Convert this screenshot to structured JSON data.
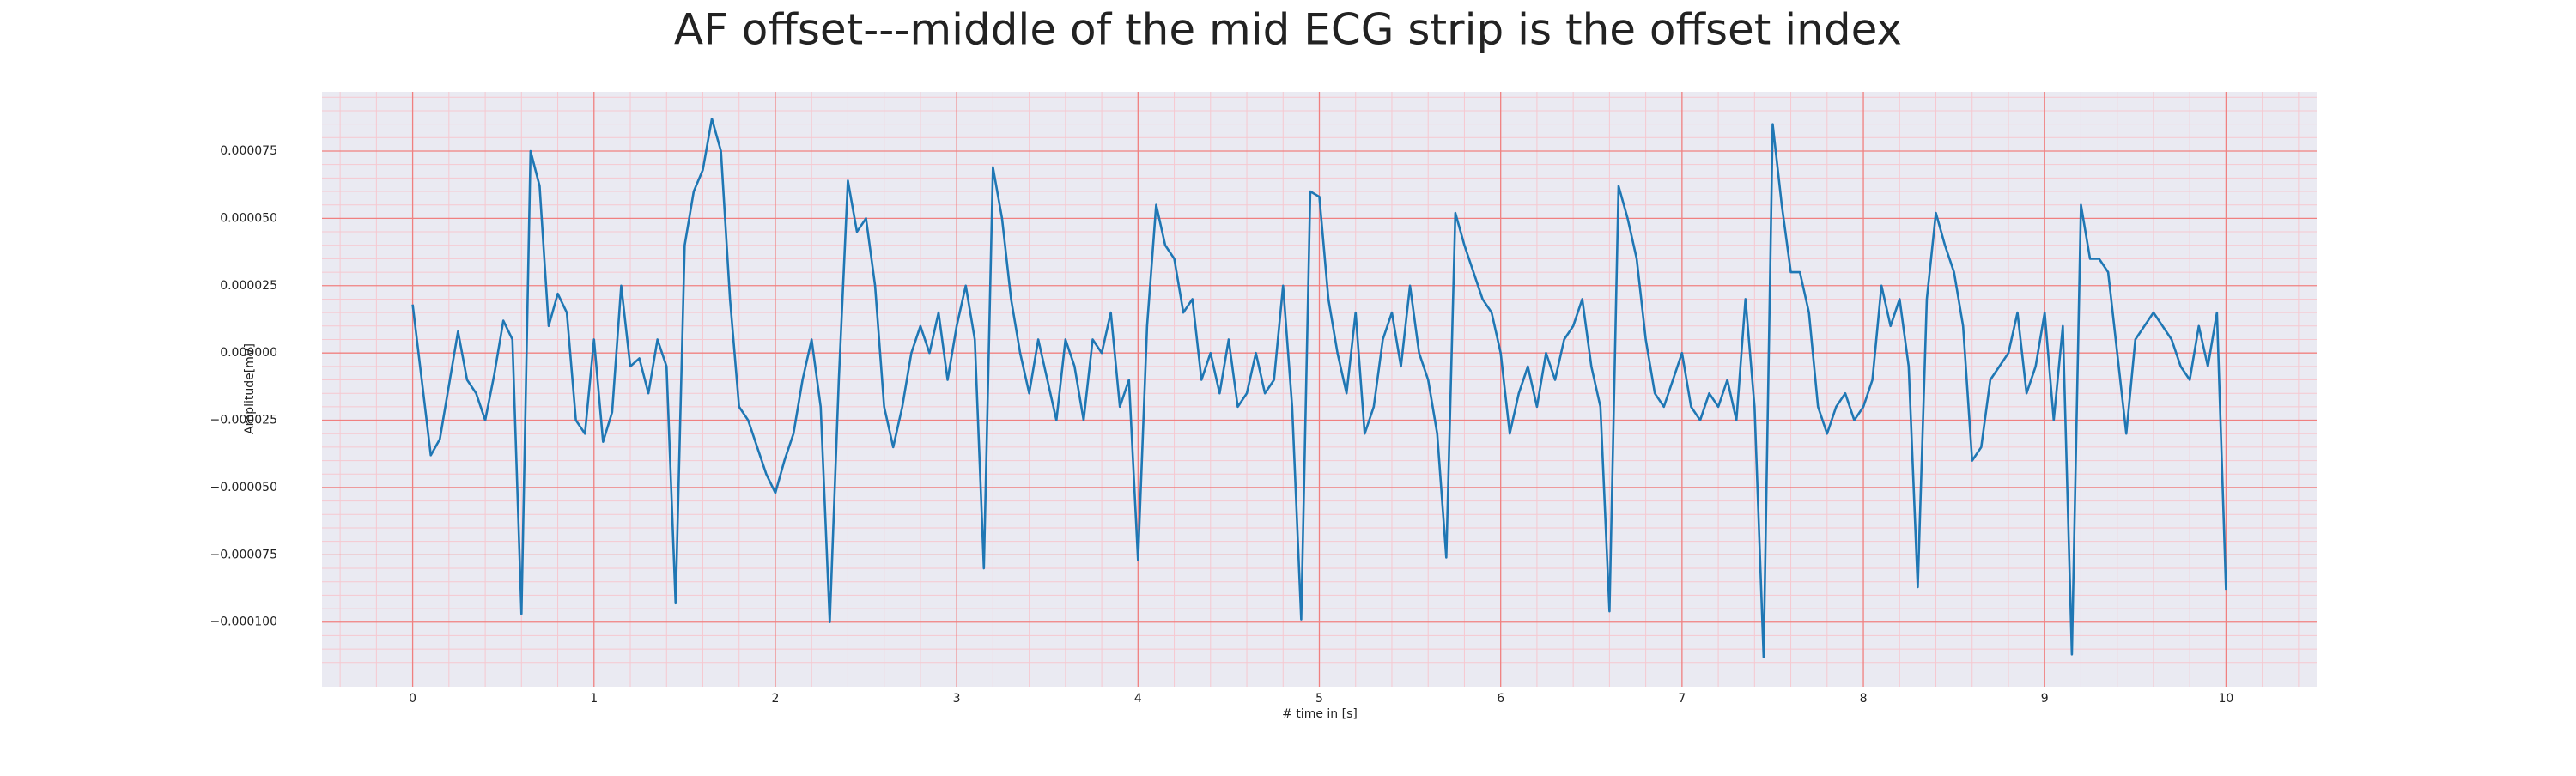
{
  "chart_data": {
    "type": "line",
    "title": "AF offset---middle of the mid ECG strip is the offset index",
    "xlabel": "# time in [s]",
    "ylabel": "Amplitude[mV]",
    "color": "#1f77b4",
    "background": "#eaeaf2",
    "grid": true,
    "grid_color": "#f08080",
    "minor_grid_color": "#f6c8d0",
    "xlim": [
      -0.5,
      10.5
    ],
    "ylim": [
      -0.000124,
      9.7e-05
    ],
    "xticks": [
      0,
      1,
      2,
      3,
      4,
      5,
      6,
      7,
      8,
      9,
      10
    ],
    "yticks": [
      {
        "value": -0.0001,
        "label": "−0.000100"
      },
      {
        "value": -7.5e-05,
        "label": "−0.000075"
      },
      {
        "value": -5e-05,
        "label": "−0.000050"
      },
      {
        "value": -2.5e-05,
        "label": "−0.000025"
      },
      {
        "value": 0,
        "label": "0.000000"
      },
      {
        "value": 2.5e-05,
        "label": "0.000025"
      },
      {
        "value": 5e-05,
        "label": "0.000050"
      },
      {
        "value": 7.5e-05,
        "label": "0.000075"
      }
    ],
    "xminorticks": [
      -0.4,
      -0.2,
      0.2,
      0.4,
      0.6,
      0.8,
      1.2,
      1.4,
      1.6,
      1.8,
      2.2,
      2.4,
      2.6,
      2.8,
      3.2,
      3.4,
      3.6,
      3.8,
      4.2,
      4.4,
      4.6,
      4.8,
      5.2,
      5.4,
      5.6,
      5.8,
      6.2,
      6.4,
      6.6,
      6.8,
      7.2,
      7.4,
      7.6,
      7.8,
      8.2,
      8.4,
      8.6,
      8.8,
      9.2,
      9.4,
      9.6,
      9.8,
      10.2,
      10.4
    ],
    "yminorticks": [
      -0.00012,
      -0.000115,
      -0.00011,
      -0.000105,
      -9.5e-05,
      -9e-05,
      -8.5e-05,
      -8e-05,
      -7e-05,
      -6.5e-05,
      -6e-05,
      -5.5e-05,
      -4.5e-05,
      -4e-05,
      -3.5e-05,
      -3e-05,
      -2e-05,
      -1.5e-05,
      -1e-05,
      -5e-06,
      5e-06,
      1e-05,
      1.5e-05,
      2e-05,
      3e-05,
      3.5e-05,
      4e-05,
      4.5e-05,
      5.5e-05,
      6e-05,
      6.5e-05,
      7e-05,
      8e-05,
      8.5e-05,
      9e-05,
      9.5e-05
    ],
    "x": [
      0,
      0.05,
      0.1,
      0.15,
      0.2,
      0.25,
      0.3,
      0.35,
      0.4,
      0.45,
      0.5,
      0.55,
      0.6,
      0.65,
      0.7,
      0.75,
      0.8,
      0.85,
      0.9,
      0.95,
      1,
      1.05,
      1.1,
      1.15,
      1.2,
      1.25,
      1.3,
      1.35,
      1.4,
      1.45,
      1.5,
      1.55,
      1.6,
      1.65,
      1.7,
      1.75,
      1.8,
      1.85,
      1.9,
      1.95,
      2,
      2.05,
      2.1,
      2.15,
      2.2,
      2.25,
      2.3,
      2.35,
      2.4,
      2.45,
      2.5,
      2.55,
      2.6,
      2.65,
      2.7,
      2.75,
      2.8,
      2.85,
      2.9,
      2.95,
      3,
      3.05,
      3.1,
      3.15,
      3.2,
      3.25,
      3.3,
      3.35,
      3.4,
      3.45,
      3.5,
      3.55,
      3.6,
      3.65,
      3.7,
      3.75,
      3.8,
      3.85,
      3.9,
      3.95,
      4,
      4.05,
      4.1,
      4.15,
      4.2,
      4.25,
      4.3,
      4.35,
      4.4,
      4.45,
      4.5,
      4.55,
      4.6,
      4.65,
      4.7,
      4.75,
      4.8,
      4.85,
      4.9,
      4.95,
      5,
      5.05,
      5.1,
      5.15,
      5.2,
      5.25,
      5.3,
      5.35,
      5.4,
      5.45,
      5.5,
      5.55,
      5.6,
      5.65,
      5.7,
      5.75,
      5.8,
      5.85,
      5.9,
      5.95,
      6,
      6.05,
      6.1,
      6.15,
      6.2,
      6.25,
      6.3,
      6.35,
      6.4,
      6.45,
      6.5,
      6.55,
      6.6,
      6.65,
      6.7,
      6.75,
      6.8,
      6.85,
      6.9,
      6.95,
      7,
      7.05,
      7.1,
      7.15,
      7.2,
      7.25,
      7.3,
      7.35,
      7.4,
      7.45,
      7.5,
      7.55,
      7.6,
      7.65,
      7.7,
      7.75,
      7.8,
      7.85,
      7.9,
      7.95,
      8,
      8.05,
      8.1,
      8.15,
      8.2,
      8.25,
      8.3,
      8.35,
      8.4,
      8.45,
      8.5,
      8.55,
      8.6,
      8.65,
      8.7,
      8.75,
      8.8,
      8.85,
      8.9,
      8.95,
      9,
      9.05,
      9.1,
      9.15,
      9.2,
      9.25,
      9.3,
      9.35,
      9.4,
      9.45,
      9.5,
      9.55,
      9.6,
      9.65,
      9.7,
      9.75,
      9.8,
      9.85,
      9.9,
      9.95,
      10
    ],
    "values": [
      1.8e-05,
      -1e-05,
      -3.8e-05,
      -3.2e-05,
      -1.2e-05,
      8e-06,
      -1e-05,
      -1.5e-05,
      -2.5e-05,
      -8e-06,
      1.2e-05,
      5e-06,
      -9.7e-05,
      7.5e-05,
      6.2e-05,
      1e-05,
      2.2e-05,
      1.5e-05,
      -2.5e-05,
      -3e-05,
      5e-06,
      -3.3e-05,
      -2.2e-05,
      2.5e-05,
      -5e-06,
      -2e-06,
      -1.5e-05,
      5e-06,
      -5e-06,
      -9.3e-05,
      4e-05,
      6e-05,
      6.8e-05,
      8.7e-05,
      7.5e-05,
      2e-05,
      -2e-05,
      -2.5e-05,
      -3.5e-05,
      -4.5e-05,
      -5.2e-05,
      -4e-05,
      -3e-05,
      -1e-05,
      5e-06,
      -2e-05,
      -0.0001,
      -1e-05,
      6.4e-05,
      4.5e-05,
      5e-05,
      2.5e-05,
      -2e-05,
      -3.5e-05,
      -2e-05,
      0,
      1e-05,
      0,
      1.5e-05,
      -1e-05,
      1e-05,
      2.5e-05,
      5e-06,
      -8e-05,
      6.9e-05,
      5e-05,
      2e-05,
      0,
      -1.5e-05,
      5e-06,
      -1e-05,
      -2.5e-05,
      5e-06,
      -5e-06,
      -2.5e-05,
      5e-06,
      0,
      1.5e-05,
      -2e-05,
      -1e-05,
      -7.7e-05,
      1e-05,
      5.5e-05,
      4e-05,
      3.5e-05,
      1.5e-05,
      2e-05,
      -1e-05,
      0,
      -1.5e-05,
      5e-06,
      -2e-05,
      -1.5e-05,
      0,
      -1.5e-05,
      -1e-05,
      2.5e-05,
      -2e-05,
      -9.9e-05,
      6e-05,
      5.8e-05,
      2e-05,
      0,
      -1.5e-05,
      1.5e-05,
      -3e-05,
      -2e-05,
      5e-06,
      1.5e-05,
      -5e-06,
      2.5e-05,
      0,
      -1e-05,
      -3e-05,
      -7.6e-05,
      5.2e-05,
      4e-05,
      3e-05,
      2e-05,
      1.5e-05,
      0,
      -3e-05,
      -1.5e-05,
      -5e-06,
      -2e-05,
      0,
      -1e-05,
      5e-06,
      1e-05,
      2e-05,
      -5e-06,
      -2e-05,
      -9.6e-05,
      6.2e-05,
      5e-05,
      3.5e-05,
      5e-06,
      -1.5e-05,
      -2e-05,
      -1e-05,
      0,
      -2e-05,
      -2.5e-05,
      -1.5e-05,
      -2e-05,
      -1e-05,
      -2.5e-05,
      2e-05,
      -2e-05,
      -0.000113,
      8.5e-05,
      5.5e-05,
      3e-05,
      3e-05,
      1.5e-05,
      -2e-05,
      -3e-05,
      -2e-05,
      -1.5e-05,
      -2.5e-05,
      -2e-05,
      -1e-05,
      2.5e-05,
      1e-05,
      2e-05,
      -5e-06,
      -8.7e-05,
      2e-05,
      5.2e-05,
      4e-05,
      3e-05,
      1e-05,
      -4e-05,
      -3.5e-05,
      -1e-05,
      -5e-06,
      0,
      1.5e-05,
      -1.5e-05,
      -5e-06,
      1.5e-05,
      -2.5e-05,
      1e-05,
      -0.000112,
      5.5e-05,
      3.5e-05,
      3.5e-05,
      3e-05,
      0,
      -3e-05,
      5e-06,
      1e-05,
      1.5e-05,
      1e-05,
      5e-06,
      -5e-06,
      -1e-05,
      1e-05,
      -5e-06,
      1.5e-05,
      -8.8e-05
    ]
  }
}
